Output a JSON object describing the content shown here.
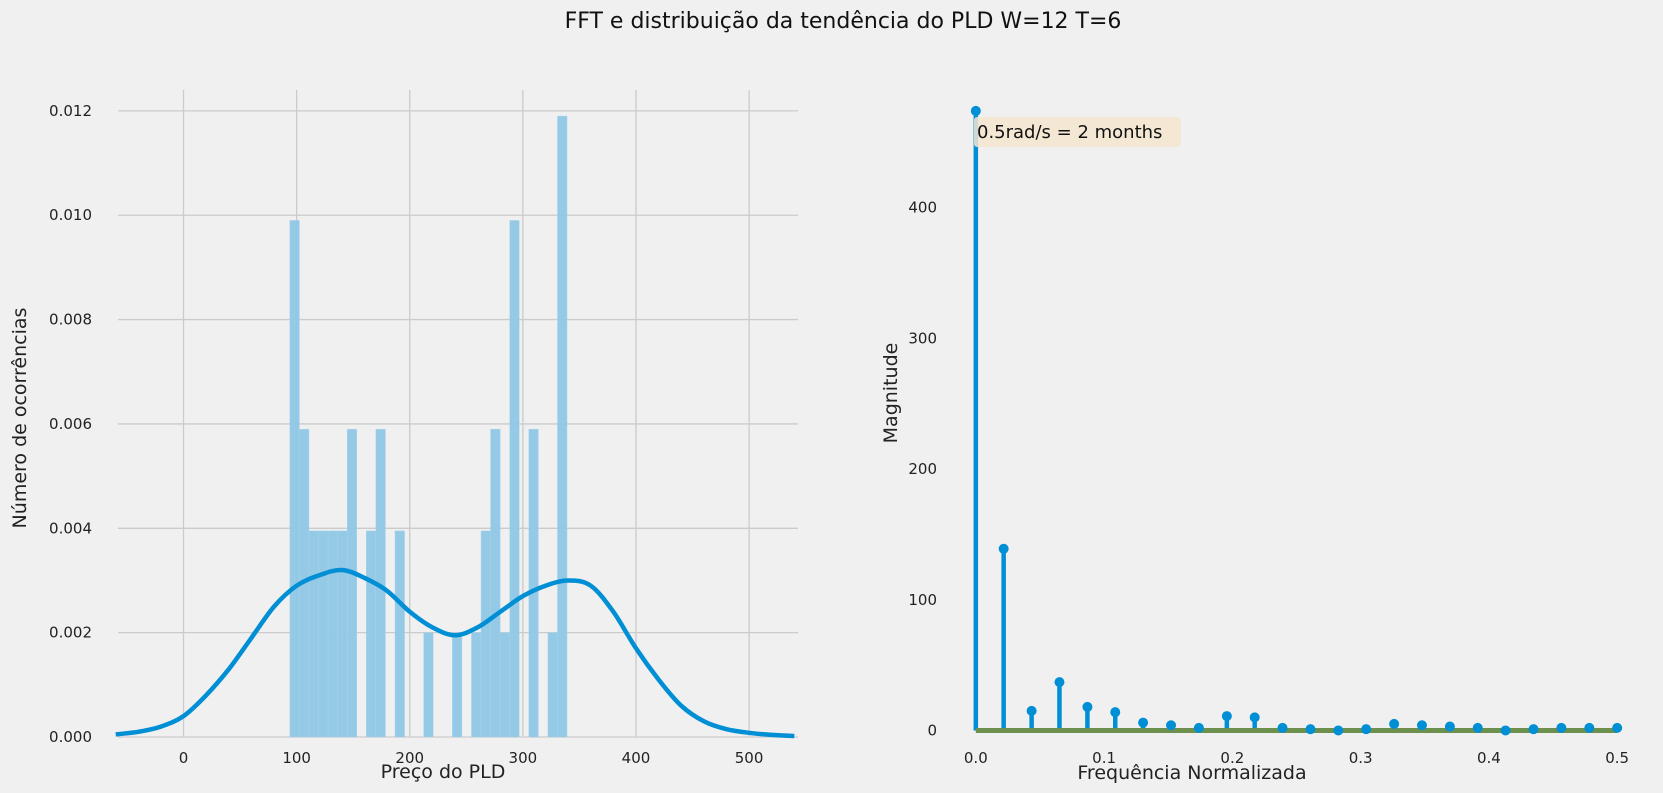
{
  "figure_title": "FFT e distribuição da tendência do PLD W=12 T=6",
  "colors": {
    "background": "#f0f0f0",
    "grid": "#cbcbcb",
    "primary": "#008fd5",
    "hist_fill": "#8fc7e6",
    "baseline": "#6d904f",
    "annotation_box": "#f5e6d0"
  },
  "chart_data": [
    {
      "type": "bar",
      "subtype": "histogram_with_kde",
      "xlabel": "Preço do PLD",
      "ylabel": "Número de ocorrências",
      "xlim": [
        -65,
        545
      ],
      "ylim": [
        0,
        0.0124
      ],
      "xticks": [
        0,
        100,
        200,
        300,
        400,
        500
      ],
      "xtick_labels": [
        "0",
        "100",
        "200",
        "300",
        "400",
        "500"
      ],
      "yticks": [
        0,
        0.002,
        0.004,
        0.006,
        0.008,
        0.01,
        0.012
      ],
      "ytick_labels": [
        "0.000",
        "0.002",
        "0.004",
        "0.006",
        "0.008",
        "0.010",
        "0.012"
      ],
      "grid": true,
      "bins": {
        "start": 94,
        "width": 8.45,
        "values": [
          0.0099,
          0.0059,
          0.00395,
          0.00395,
          0.00395,
          0.00395,
          0.0059,
          0,
          0.00395,
          0.0059,
          0,
          0.00395,
          0,
          0,
          0.002,
          0,
          0,
          0.002,
          0,
          0.002,
          0.00395,
          0.0059,
          0.002,
          0.0099,
          0,
          0.0059,
          0,
          0.002,
          0.0119
        ]
      },
      "kde": {
        "x": [
          -60,
          -40,
          -20,
          0,
          20,
          40,
          60,
          80,
          100,
          120,
          140,
          160,
          180,
          200,
          220,
          240,
          260,
          280,
          300,
          320,
          340,
          360,
          380,
          400,
          420,
          440,
          460,
          480,
          500,
          520,
          540
        ],
        "y": [
          5e-05,
          0.0001,
          0.0002,
          0.0004,
          0.0008,
          0.0013,
          0.0019,
          0.0025,
          0.0029,
          0.0031,
          0.0032,
          0.00305,
          0.0028,
          0.0024,
          0.0021,
          0.00195,
          0.0021,
          0.0024,
          0.0027,
          0.0029,
          0.003,
          0.0029,
          0.0024,
          0.0017,
          0.0011,
          0.0006,
          0.0003,
          0.00015,
          8e-05,
          4e-05,
          2e-05
        ]
      }
    },
    {
      "type": "scatter",
      "subtype": "stem",
      "xlabel": "Frequência Normalizada",
      "ylabel": "Magnitude",
      "xlim": [
        -0.01,
        0.51
      ],
      "ylim": [
        -5,
        490
      ],
      "xticks": [
        0,
        0.1,
        0.2,
        0.3,
        0.4,
        0.5
      ],
      "xtick_labels": [
        "0.0",
        "0.1",
        "0.2",
        "0.3",
        "0.4",
        "0.5"
      ],
      "yticks": [
        0,
        100,
        200,
        300,
        400
      ],
      "ytick_labels": [
        "0",
        "100",
        "200",
        "300",
        "400"
      ],
      "grid": false,
      "x": [
        0,
        0.0217,
        0.0435,
        0.0652,
        0.087,
        0.1087,
        0.1304,
        0.1522,
        0.1739,
        0.1957,
        0.2174,
        0.2391,
        0.2609,
        0.2826,
        0.3043,
        0.3261,
        0.3478,
        0.3696,
        0.3913,
        0.413,
        0.4348,
        0.4565,
        0.4783,
        0.5
      ],
      "y": [
        474,
        139,
        15,
        37,
        18,
        14,
        6,
        4,
        2,
        11,
        10,
        2,
        1,
        0,
        1,
        5,
        4,
        3,
        2,
        0,
        1,
        2,
        2,
        2
      ],
      "annotation": "0.5rad/s = 2 months"
    }
  ]
}
